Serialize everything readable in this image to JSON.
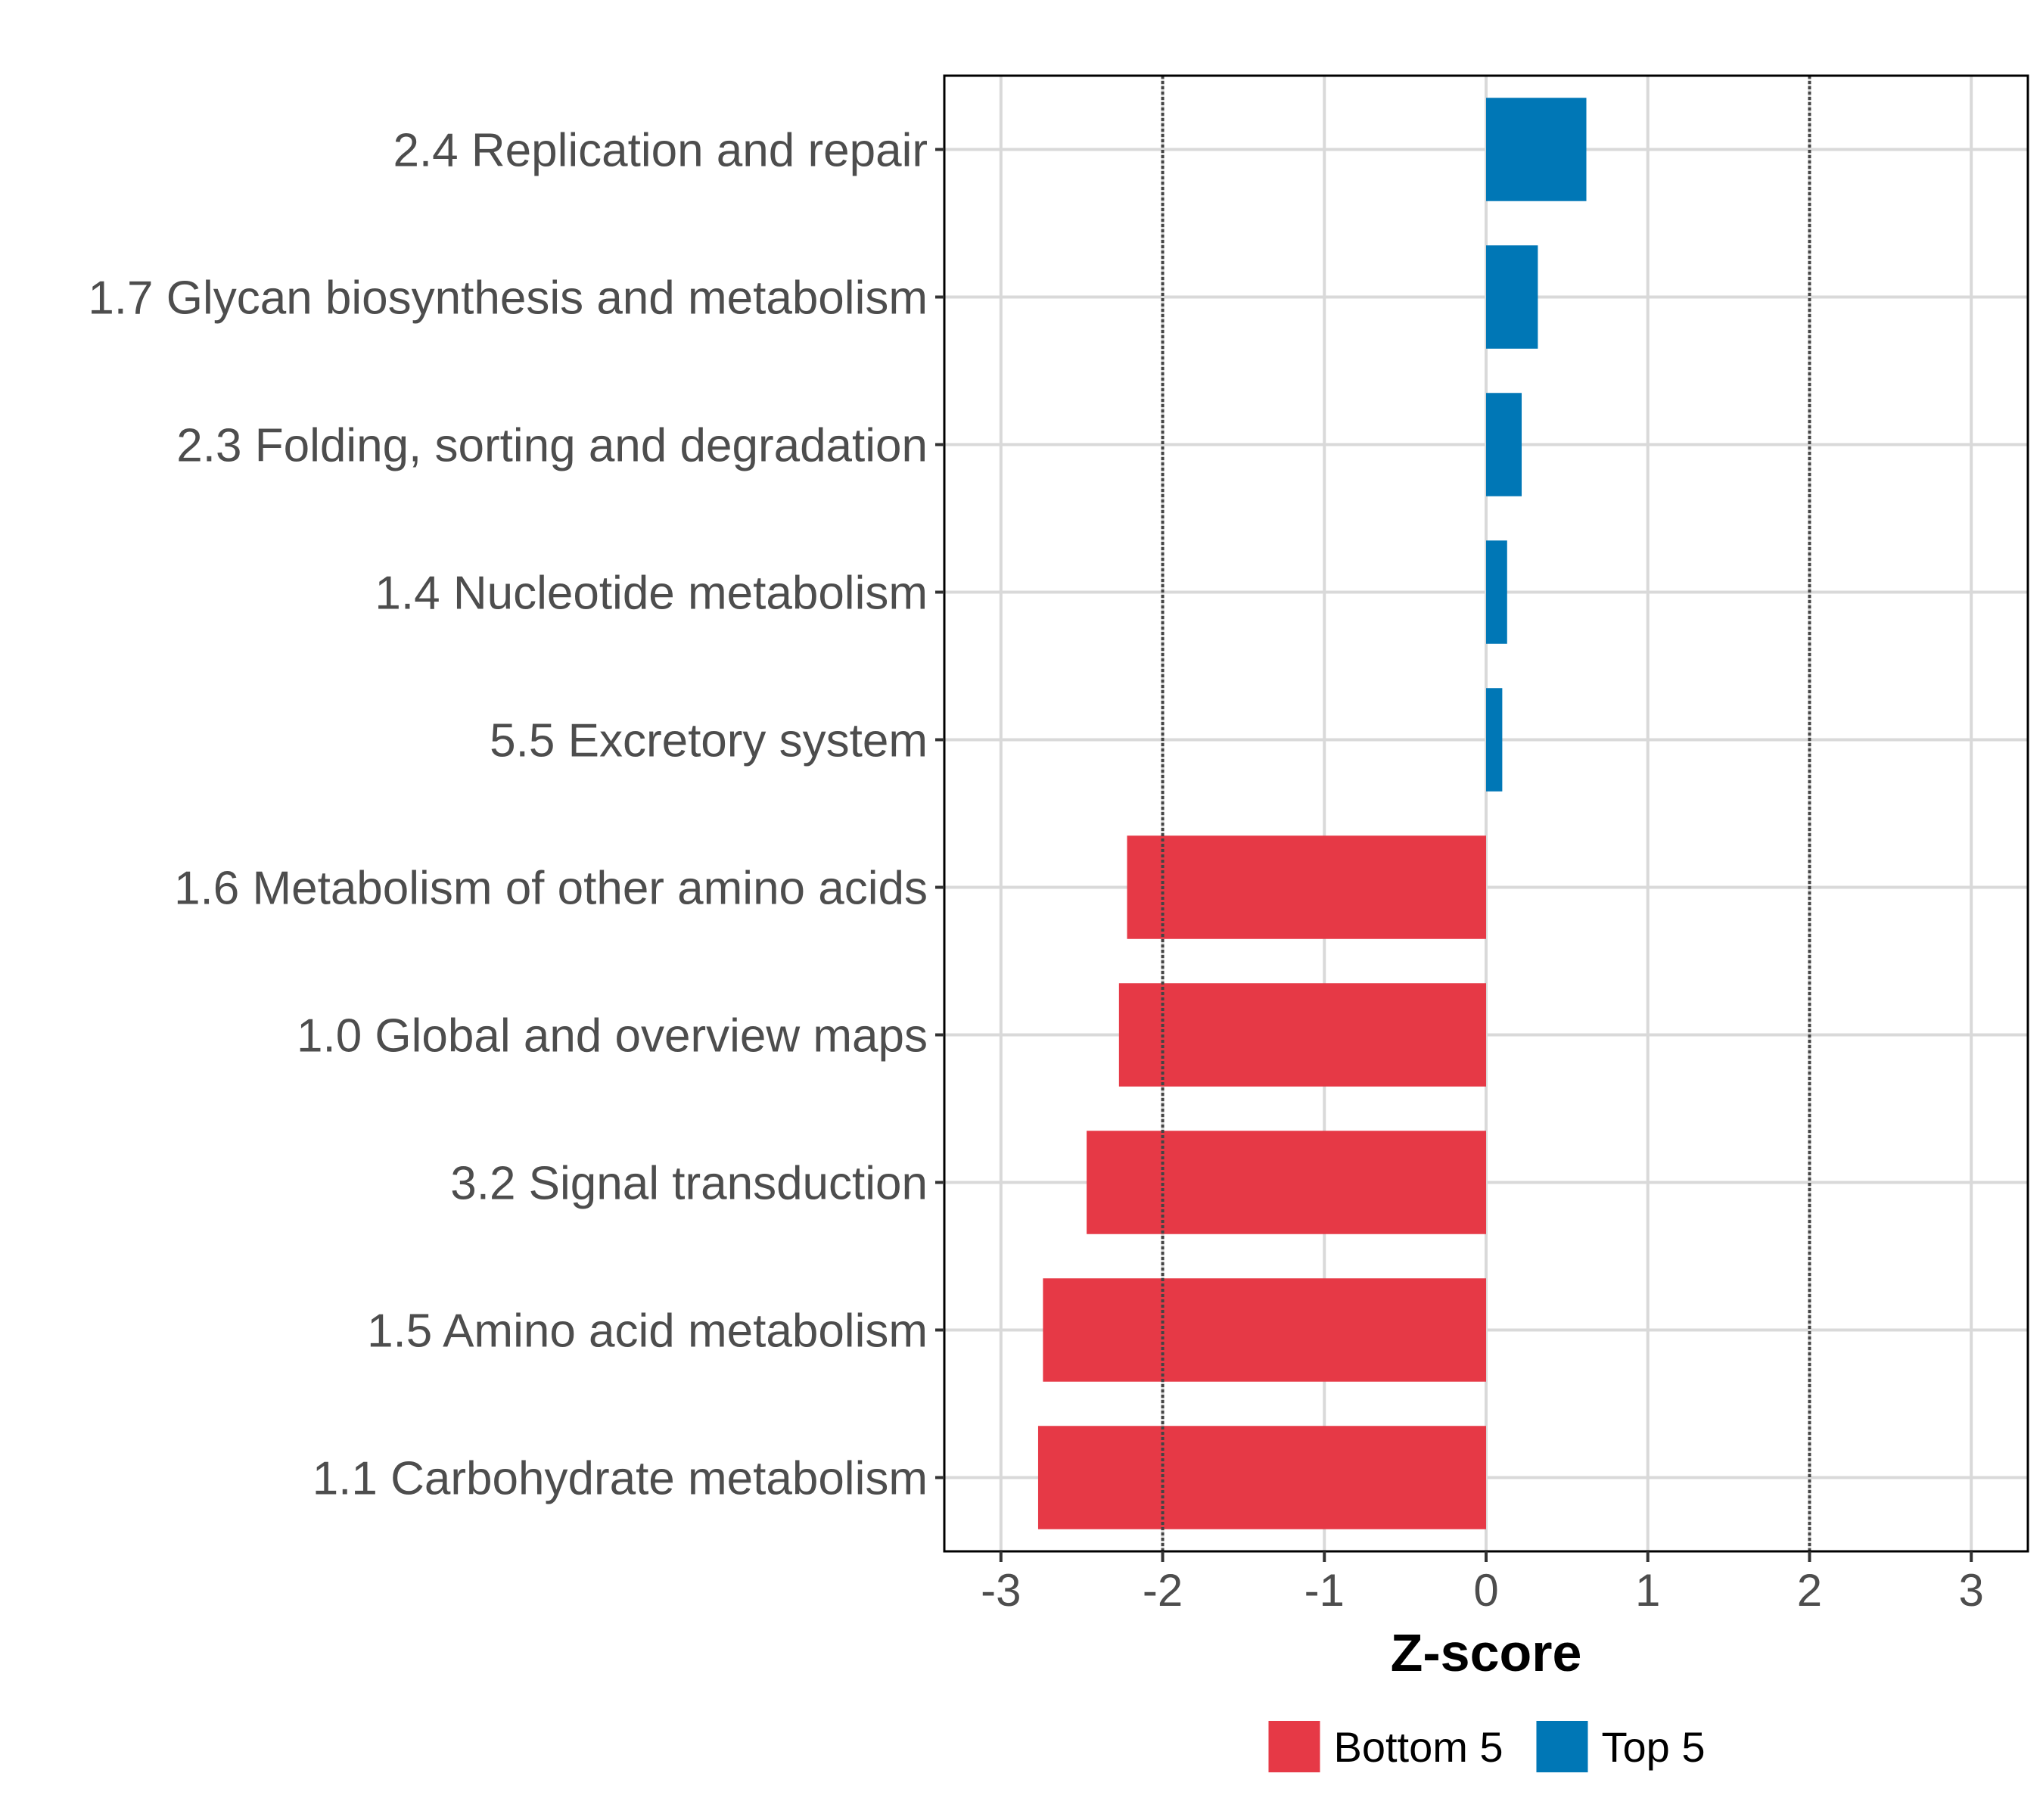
{
  "chart_data": {
    "type": "bar",
    "orientation": "horizontal",
    "title": "",
    "xlabel": "Z-score",
    "ylabel": "",
    "xlim": [
      -3.35,
      3.35
    ],
    "xticks": [
      -3,
      -2,
      -1,
      0,
      1,
      2,
      3
    ],
    "xtick_labels": [
      "-3",
      "-2",
      "-1",
      "0",
      "1",
      "2",
      "3"
    ],
    "reference_lines": [
      -2,
      2
    ],
    "grid": true,
    "categories": [
      "2.4 Replication and repair",
      "1.7 Glycan biosynthesis and metabolism",
      "2.3 Folding, sorting and degradation",
      "1.4 Nucleotide metabolism",
      "5.5 Excretory system",
      "1.6 Metabolism of other amino acids",
      "1.0 Global and overview maps",
      "3.2 Signal transduction",
      "1.5 Amino acid metabolism",
      "1.1 Carbohydrate metabolism"
    ],
    "values": [
      0.62,
      0.32,
      0.22,
      0.13,
      0.1,
      -2.22,
      -2.27,
      -2.47,
      -2.74,
      -2.77
    ],
    "groups": [
      "Top 5",
      "Top 5",
      "Top 5",
      "Top 5",
      "Top 5",
      "Bottom 5",
      "Bottom 5",
      "Bottom 5",
      "Bottom 5",
      "Bottom 5"
    ],
    "legend": {
      "position": "bottom",
      "entries": [
        {
          "label": "Bottom 5",
          "color": "#e63946"
        },
        {
          "label": "Top 5",
          "color": "#0077b6"
        }
      ]
    },
    "colors": {
      "Top 5": "#0077b6",
      "Bottom 5": "#e63946",
      "grid": "#d9d9d9",
      "reference": "#444444",
      "frame": "#000000"
    }
  }
}
